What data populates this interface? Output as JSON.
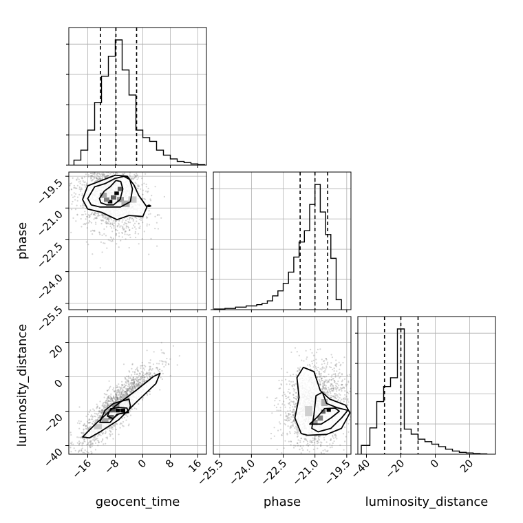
{
  "chart_data": {
    "type": "corner",
    "parameters": [
      "geocent_time",
      "phase",
      "luminosity_distance"
    ],
    "axis_labels": {
      "geocent_time": "geocent_time",
      "phase": "phase",
      "luminosity_distance": "luminosity_distance"
    },
    "ticks": {
      "geocent_time": [
        "−16",
        "−8",
        "0",
        "8",
        "16"
      ],
      "phase": [
        "−25.5",
        "−24.0",
        "−22.5",
        "−21.0",
        "−19.5"
      ],
      "luminosity_distance": [
        "−40",
        "−20",
        "0",
        "20"
      ]
    },
    "tick_values": {
      "geocent_time": [
        -16,
        -8,
        0,
        8,
        16
      ],
      "phase": [
        -25.5,
        -24.0,
        -22.5,
        -21.0,
        -19.5
      ],
      "luminosity_distance": [
        -40,
        -20,
        0,
        20
      ]
    },
    "ranges": {
      "geocent_time": [
        -21.5,
        18.5
      ],
      "phase": [
        -25.8,
        -19.3
      ],
      "luminosity_distance": [
        -45,
        35
      ]
    },
    "grid": true,
    "quantiles": {
      "geocent_time": [
        -12.3,
        -7.8,
        -1.8
      ],
      "phase": [
        -21.7,
        -21.0,
        -20.4
      ],
      "luminosity_distance": [
        -29.5,
        -20.0,
        -10.0
      ]
    },
    "histograms": {
      "geocent_time": {
        "edges": [
          -20,
          -18,
          -16,
          -14,
          -12,
          -10,
          -8,
          -6,
          -4,
          -2,
          0,
          2,
          4,
          6,
          8,
          10,
          12,
          14,
          16,
          18
        ],
        "counts": [
          0.04,
          0.12,
          0.28,
          0.5,
          0.71,
          0.87,
          1.0,
          0.76,
          0.56,
          0.28,
          0.22,
          0.19,
          0.12,
          0.08,
          0.05,
          0.03,
          0.02,
          0.01,
          0.005
        ]
      },
      "phase": {
        "edges": [
          -25.75,
          -25.25,
          -24.75,
          -24.25,
          -23.75,
          -23.5,
          -23.25,
          -23.0,
          -22.75,
          -22.5,
          -22.25,
          -22.0,
          -21.75,
          -21.5,
          -21.25,
          -21.0,
          -20.75,
          -20.5,
          -20.25,
          -20.0,
          -19.75
        ],
        "counts": [
          0.005,
          0.01,
          0.02,
          0.03,
          0.04,
          0.05,
          0.07,
          0.11,
          0.15,
          0.21,
          0.3,
          0.42,
          0.54,
          0.63,
          0.84,
          1.0,
          0.78,
          0.6,
          0.41,
          0.08
        ]
      },
      "luminosity_distance": {
        "edges": [
          -43,
          -38,
          -34,
          -30,
          -26,
          -22,
          -18,
          -14,
          -10,
          -6,
          -2,
          2,
          6,
          10,
          14,
          18,
          22,
          26,
          30
        ],
        "counts": [
          0.07,
          0.21,
          0.42,
          0.54,
          0.61,
          1.0,
          0.2,
          0.16,
          0.12,
          0.1,
          0.08,
          0.06,
          0.04,
          0.025,
          0.015,
          0.01,
          0.005,
          0.002
        ]
      }
    },
    "pairs": [
      {
        "x": "geocent_time",
        "y": "phase",
        "points": {
          "center_x": -9.5,
          "center_y": -20.45,
          "spread_x": 5.0,
          "spread_y": 0.9,
          "correlation": -0.25,
          "count": 1600
        },
        "density_cells": [
          {
            "x": -9.5,
            "y": -20.7,
            "w": 1.3,
            "h": 0.16,
            "level": 1.0
          },
          {
            "x": -7.6,
            "y": -20.3,
            "w": 1.3,
            "h": 0.16,
            "level": 1.0
          },
          {
            "x": -8.5,
            "y": -20.5,
            "w": 1.6,
            "h": 0.2,
            "level": 0.6
          },
          {
            "x": -6.5,
            "y": -20.1,
            "w": 1.6,
            "h": 0.2,
            "level": 0.6
          },
          {
            "x": -10.5,
            "y": -20.6,
            "w": 1.6,
            "h": 0.2,
            "level": 0.45
          },
          {
            "x": -6.5,
            "y": -20.6,
            "w": 2.0,
            "h": 0.25,
            "level": 0.35
          },
          {
            "x": -11.5,
            "y": -20.4,
            "w": 2.0,
            "h": 0.25,
            "level": 0.3
          },
          {
            "x": -5.0,
            "y": -20.8,
            "w": 2.4,
            "h": 0.3,
            "level": 0.25
          },
          {
            "x": -3.0,
            "y": -20.6,
            "w": 2.4,
            "h": 0.3,
            "level": 0.15
          }
        ],
        "contours": [
          [
            [
              -12.6,
              -20.55
            ],
            [
              -11.2,
              -20.2
            ],
            [
              -9.5,
              -20.0
            ],
            [
              -7.8,
              -19.7
            ],
            [
              -6.4,
              -19.75
            ],
            [
              -5.8,
              -20.1
            ],
            [
              -6.6,
              -20.6
            ],
            [
              -8.5,
              -20.85
            ],
            [
              -10.5,
              -20.85
            ],
            [
              -12.2,
              -20.75
            ]
          ],
          [
            [
              -16.0,
              -20.55
            ],
            [
              -14.0,
              -20.0
            ],
            [
              -11.0,
              -19.85
            ],
            [
              -8.0,
              -19.6
            ],
            [
              -5.5,
              -19.5
            ],
            [
              -3.8,
              -19.65
            ],
            [
              -3.0,
              -20.1
            ],
            [
              -3.6,
              -20.7
            ],
            [
              -6.5,
              -20.95
            ],
            [
              -9.5,
              -20.95
            ],
            [
              -12.5,
              -20.95
            ],
            [
              -15.0,
              -20.85
            ]
          ],
          [
            [
              -17.5,
              -20.6
            ],
            [
              -16.0,
              -19.95
            ],
            [
              -12.0,
              -19.7
            ],
            [
              -8.0,
              -19.45
            ],
            [
              -4.5,
              -19.5
            ],
            [
              -2.6,
              -19.9
            ],
            [
              -1.2,
              -20.4
            ],
            [
              1.2,
              -20.95
            ],
            [
              0.0,
              -21.4
            ],
            [
              -4.0,
              -21.35
            ],
            [
              -7.5,
              -21.55
            ],
            [
              -12.0,
              -21.2
            ],
            [
              -16.0,
              -21.05
            ]
          ]
        ],
        "contour_dots": [
          {
            "x": 1.8,
            "y": -20.9
          }
        ]
      },
      {
        "x": "geocent_time",
        "y": "luminosity_distance",
        "points": {
          "center_x": -7.5,
          "center_y": -17.0,
          "spread_x": 5.5,
          "spread_y": 12.0,
          "correlation": 0.88,
          "count": 1600
        },
        "density_cells": [
          {
            "x": -7.3,
            "y": -19.6,
            "w": 1.4,
            "h": 2.2,
            "level": 1.0
          },
          {
            "x": -5.8,
            "y": -19.6,
            "w": 1.4,
            "h": 2.2,
            "level": 1.0
          },
          {
            "x": -8.8,
            "y": -19.6,
            "w": 1.4,
            "h": 2.2,
            "level": 0.65
          },
          {
            "x": -9.2,
            "y": -23.5,
            "w": 1.6,
            "h": 2.6,
            "level": 0.55
          },
          {
            "x": -7.8,
            "y": -16.5,
            "w": 2.0,
            "h": 2.5,
            "level": 0.4
          },
          {
            "x": -11.0,
            "y": -25.5,
            "w": 2.0,
            "h": 3.0,
            "level": 0.3
          },
          {
            "x": -5.0,
            "y": -12.5,
            "w": 2.2,
            "h": 3.5,
            "level": 0.2
          },
          {
            "x": -13.0,
            "y": -29.0,
            "w": 2.2,
            "h": 3.0,
            "level": 0.15
          }
        ],
        "contours": [
          [
            [
              -10.3,
              -22.8
            ],
            [
              -9.3,
              -18.6
            ],
            [
              -7.0,
              -17.8
            ],
            [
              -4.6,
              -18.2
            ],
            [
              -4.2,
              -20.8
            ],
            [
              -7.0,
              -21.6
            ],
            [
              -8.7,
              -24.3
            ]
          ],
          [
            [
              -12.5,
              -26.5
            ],
            [
              -11.0,
              -19.5
            ],
            [
              -8.5,
              -15.5
            ],
            [
              -4.0,
              -13.0
            ],
            [
              -3.6,
              -17.0
            ],
            [
              -4.3,
              -20.5
            ],
            [
              -7.5,
              -21.8
            ],
            [
              -9.5,
              -26.5
            ]
          ],
          [
            [
              -17.5,
              -35.0
            ],
            [
              -13.5,
              -27.0
            ],
            [
              -8.0,
              -17.0
            ],
            [
              -2.0,
              -8.0
            ],
            [
              3.0,
              0.0
            ],
            [
              5.0,
              2.0
            ],
            [
              3.8,
              -4.0
            ],
            [
              -2.0,
              -15.0
            ],
            [
              -7.0,
              -25.0
            ],
            [
              -12.0,
              -31.5
            ],
            [
              -15.5,
              -35.5
            ]
          ]
        ],
        "contour_dots": []
      },
      {
        "x": "phase",
        "y": "luminosity_distance",
        "points": {
          "center_x": -21.0,
          "center_y": -17.0,
          "spread_x": 0.75,
          "spread_y": 12.0,
          "correlation": 0.15,
          "count": 1600
        },
        "density_cells": [
          {
            "x": -20.35,
            "y": -19.3,
            "w": 0.2,
            "h": 2.2,
            "level": 1.0
          },
          {
            "x": -20.6,
            "y": -20.3,
            "w": 0.2,
            "h": 2.2,
            "level": 0.6
          },
          {
            "x": -20.75,
            "y": -24.0,
            "w": 0.25,
            "h": 3.0,
            "level": 0.45
          },
          {
            "x": -21.0,
            "y": -26.5,
            "w": 0.25,
            "h": 3.0,
            "level": 0.35
          },
          {
            "x": -20.55,
            "y": -15.0,
            "w": 0.3,
            "h": 4.0,
            "level": 0.25
          },
          {
            "x": -21.3,
            "y": -20.0,
            "w": 0.35,
            "h": 6.0,
            "level": 0.12
          }
        ],
        "contours": [
          [
            [
              -21.25,
              -27.5
            ],
            [
              -20.9,
              -23.5
            ],
            [
              -20.55,
              -18.5
            ],
            [
              -20.05,
              -18.2
            ],
            [
              -19.85,
              -20.0
            ],
            [
              -20.25,
              -24.0
            ],
            [
              -20.7,
              -27.5
            ]
          ],
          [
            [
              -21.15,
              -30.0
            ],
            [
              -21.05,
              -22.0
            ],
            [
              -20.95,
              -11.0
            ],
            [
              -20.65,
              -9.0
            ],
            [
              -20.45,
              -15.5
            ],
            [
              -19.95,
              -18.0
            ],
            [
              -19.45,
              -19.5
            ],
            [
              -19.75,
              -24.0
            ],
            [
              -20.25,
              -30.0
            ],
            [
              -20.85,
              -32.0
            ]
          ],
          [
            [
              -21.65,
              -33.0
            ],
            [
              -21.95,
              -24.0
            ],
            [
              -21.75,
              -12.0
            ],
            [
              -21.85,
              -0.5
            ],
            [
              -21.55,
              5.5
            ],
            [
              -21.05,
              3.0
            ],
            [
              -20.75,
              -8.0
            ],
            [
              -20.3,
              -13.0
            ],
            [
              -19.55,
              -16.5
            ],
            [
              -19.35,
              -21.0
            ],
            [
              -19.75,
              -30.0
            ],
            [
              -20.45,
              -33.5
            ],
            [
              -21.35,
              -34.0
            ]
          ]
        ],
        "contour_dots": []
      }
    ]
  }
}
